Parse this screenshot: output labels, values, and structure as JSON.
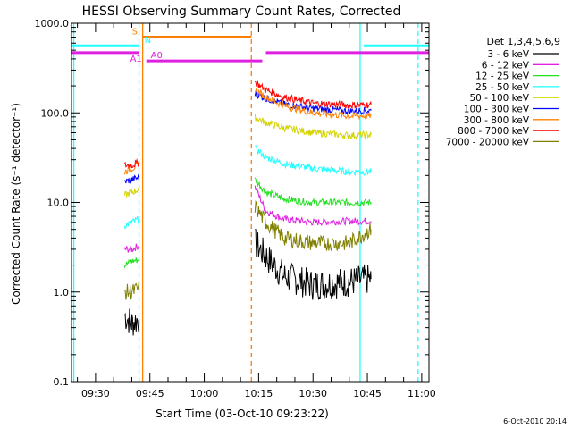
{
  "chart_data": {
    "type": "line",
    "title": "HESSI Observing Summary Count Rates, Corrected",
    "xlabel": "Start Time (03-Oct-10 09:23:22)",
    "ylabel": "Corrected Count Rate (s⁻¹ detector⁻¹)",
    "y_scale": "log",
    "ylim": [
      0.1,
      1000
    ],
    "xlim_minutes": [
      "09:23:22",
      "11:02:00"
    ],
    "x_ticks": [
      "09:30",
      "09:45",
      "10:00",
      "10:15",
      "10:30",
      "10:45",
      "11:00"
    ],
    "y_ticks": [
      "0.1",
      "1.0",
      "10.0",
      "100.0",
      "1000.0"
    ],
    "legend_title": "Det 1,3,4,5,6,9",
    "legend_position": "right",
    "timestamp": "6-Oct-2010 20:14",
    "series": [
      {
        "name": "3 - 6 keV",
        "color": "#000000",
        "seg1": [
          [
            "09:38",
            0.55
          ],
          [
            "09:40",
            0.45
          ],
          [
            "09:42",
            0.5
          ]
        ],
        "seg2": [
          [
            "10:14",
            3.5
          ],
          [
            "10:17",
            2.5
          ],
          [
            "10:22",
            1.5
          ],
          [
            "10:30",
            1.2
          ],
          [
            "10:40",
            1.3
          ],
          [
            "10:46",
            1.4
          ]
        ]
      },
      {
        "name": "6 - 12 keV",
        "color": "#e020e0",
        "seg1": [
          [
            "09:38",
            3.0
          ],
          [
            "09:40",
            3.0
          ],
          [
            "09:42",
            3.3
          ]
        ],
        "seg2": [
          [
            "10:14",
            15
          ],
          [
            "10:17",
            8
          ],
          [
            "10:22",
            6.5
          ],
          [
            "10:30",
            6
          ],
          [
            "10:40",
            6.2
          ],
          [
            "10:46",
            6.2
          ]
        ]
      },
      {
        "name": "12 - 25 keV",
        "color": "#20e020",
        "seg1": [
          [
            "09:38",
            2.0
          ],
          [
            "09:40",
            2.2
          ],
          [
            "09:42",
            2.3
          ]
        ],
        "seg2": [
          [
            "10:14",
            18
          ],
          [
            "10:17",
            13
          ],
          [
            "10:22",
            11
          ],
          [
            "10:30",
            10
          ],
          [
            "10:40",
            10
          ],
          [
            "10:46",
            10
          ]
        ]
      },
      {
        "name": "25 - 50 keV",
        "color": "#20ffff",
        "seg1": [
          [
            "09:38",
            5.5
          ],
          [
            "09:40",
            6.0
          ],
          [
            "09:42",
            6.5
          ]
        ],
        "seg2": [
          [
            "10:14",
            40
          ],
          [
            "10:17",
            32
          ],
          [
            "10:22",
            27
          ],
          [
            "10:30",
            24
          ],
          [
            "10:40",
            22
          ],
          [
            "10:46",
            22
          ]
        ]
      },
      {
        "name": "50 - 100 keV",
        "color": "#d4d400",
        "seg1": [
          [
            "09:38",
            12
          ],
          [
            "09:40",
            13
          ],
          [
            "09:42",
            14
          ]
        ],
        "seg2": [
          [
            "10:14",
            90
          ],
          [
            "10:17",
            78
          ],
          [
            "10:22",
            68
          ],
          [
            "10:30",
            60
          ],
          [
            "10:40",
            56
          ],
          [
            "10:46",
            57
          ]
        ]
      },
      {
        "name": "100 - 300 keV",
        "color": "#0000ff",
        "seg1": [
          [
            "09:38",
            17
          ],
          [
            "09:40",
            18
          ],
          [
            "09:42",
            19
          ]
        ],
        "seg2": [
          [
            "10:14",
            165
          ],
          [
            "10:17",
            145
          ],
          [
            "10:22",
            125
          ],
          [
            "10:30",
            112
          ],
          [
            "10:40",
            105
          ],
          [
            "10:46",
            106
          ]
        ]
      },
      {
        "name": "300 - 800 keV",
        "color": "#ff8000",
        "seg1": [
          [
            "09:38",
            22
          ],
          [
            "09:40",
            24
          ],
          [
            "09:42",
            26
          ]
        ],
        "seg2": [
          [
            "10:14",
            180
          ],
          [
            "10:17",
            150
          ],
          [
            "10:22",
            120
          ],
          [
            "10:30",
            100
          ],
          [
            "10:40",
            92
          ],
          [
            "10:46",
            93
          ]
        ]
      },
      {
        "name": "800 - 7000 keV",
        "color": "#ff0000",
        "seg1": [
          [
            "09:38",
            26
          ],
          [
            "09:40",
            26
          ],
          [
            "09:42",
            28
          ]
        ],
        "seg2": [
          [
            "10:14",
            220
          ],
          [
            "10:17",
            180
          ],
          [
            "10:22",
            150
          ],
          [
            "10:30",
            128
          ],
          [
            "10:40",
            122
          ],
          [
            "10:46",
            123
          ]
        ]
      },
      {
        "name": "7000 - 20000 keV",
        "color": "#808000",
        "seg1": [
          [
            "09:38",
            1.0
          ],
          [
            "09:40",
            1.0
          ],
          [
            "09:42",
            1.1
          ]
        ],
        "seg2": [
          [
            "10:14",
            9
          ],
          [
            "10:17",
            6
          ],
          [
            "10:22",
            4
          ],
          [
            "10:30",
            3.5
          ],
          [
            "10:40",
            3.5
          ],
          [
            "10:46",
            5
          ]
        ]
      }
    ],
    "flag_bars": [
      {
        "label": "S",
        "color": "#ff8000",
        "start": "09:43",
        "end": "10:13",
        "level": 700
      },
      {
        "label": "N",
        "color": "#20ffff",
        "start": "09:23:22",
        "end": "09:42",
        "level": 560
      },
      {
        "label": "N",
        "color": "#20ffff",
        "start": "10:44",
        "end": "11:02",
        "level": 560
      },
      {
        "label": "A0",
        "color": "#e020e0",
        "start": "09:44",
        "end": "10:16",
        "level": 380
      },
      {
        "label": "A1",
        "color": "#e020e0",
        "start": "09:23:22",
        "end": "09:42",
        "level": 470
      },
      {
        "label": "",
        "color": "#e020e0",
        "start": "10:17",
        "end": "11:02",
        "level": 470
      }
    ],
    "vertical_markers": [
      {
        "time": "09:24",
        "color": "#20ffff",
        "style": "solid"
      },
      {
        "time": "09:42",
        "color": "#20ffff",
        "style": "dashed"
      },
      {
        "time": "09:43",
        "color": "#ff8000",
        "style": "solid"
      },
      {
        "time": "10:13",
        "color": "#ff8000",
        "style": "dashed"
      },
      {
        "time": "10:43",
        "color": "#20ffff",
        "style": "solid"
      },
      {
        "time": "10:59",
        "color": "#20ffff",
        "style": "dashed"
      }
    ]
  }
}
